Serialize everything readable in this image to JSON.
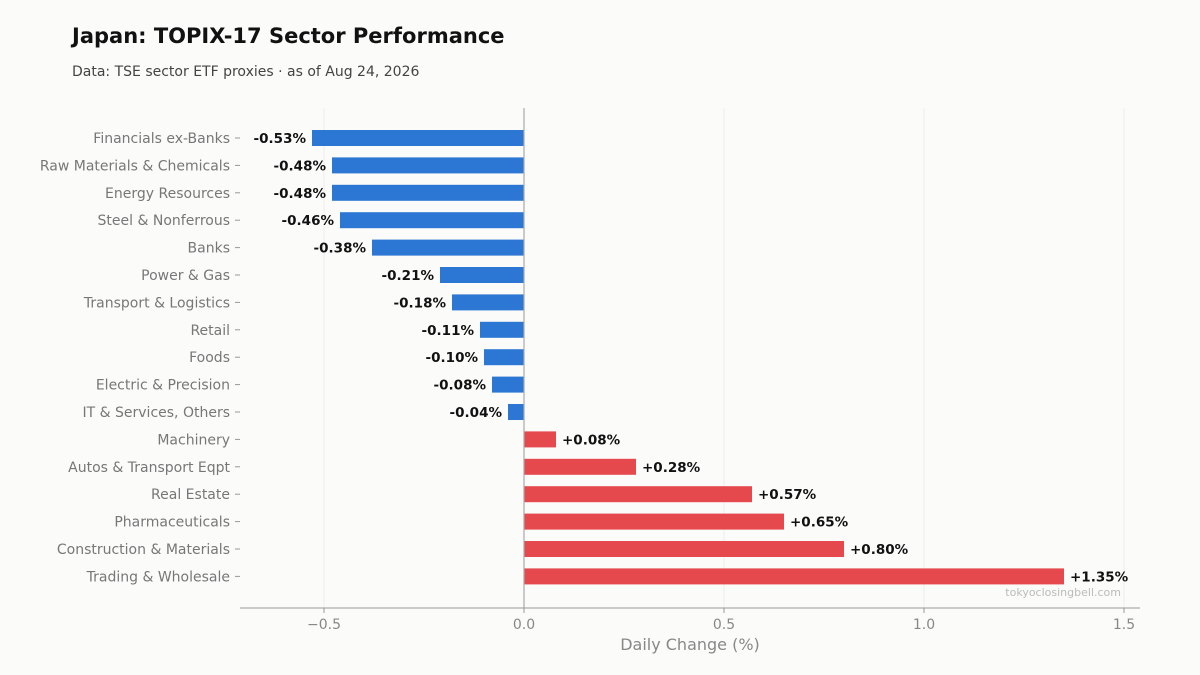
{
  "header": {
    "title": "Japan: TOPIX-17 Sector Performance",
    "subtitle": "Data: TSE sector ETF proxies · as of Aug 24, 2026"
  },
  "watermark": "tokyoclosingbell.com",
  "colors": {
    "negative": "#2c77d3",
    "positive": "#e5484d",
    "axis": "#999999",
    "grid": "#eeeeee"
  },
  "chart_data": {
    "type": "bar",
    "orientation": "horizontal",
    "title": "Japan: TOPIX-17 Sector Performance",
    "subtitle": "Data: TSE sector ETF proxies · as of Aug 24, 2026",
    "xlabel": "Daily Change (%)",
    "ylabel": "",
    "xlim": [
      -0.71,
      1.54
    ],
    "xticks": [
      -0.5,
      0.0,
      0.5,
      1.0,
      1.5
    ],
    "xtick_labels": [
      "−0.5",
      "0.0",
      "0.5",
      "1.0",
      "1.5"
    ],
    "grid": "vertical",
    "categories": [
      "Financials ex-Banks",
      "Raw Materials & Chemicals",
      "Energy Resources",
      "Steel & Nonferrous",
      "Banks",
      "Power & Gas",
      "Transport & Logistics",
      "Retail",
      "Foods",
      "Electric & Precision",
      "IT & Services, Others",
      "Machinery",
      "Autos & Transport Eqpt",
      "Real Estate",
      "Pharmaceuticals",
      "Construction & Materials",
      "Trading & Wholesale"
    ],
    "values": [
      -0.53,
      -0.48,
      -0.48,
      -0.46,
      -0.38,
      -0.21,
      -0.18,
      -0.11,
      -0.1,
      -0.08,
      -0.04,
      0.08,
      0.28,
      0.57,
      0.65,
      0.8,
      1.35
    ],
    "value_labels": [
      "-0.53%",
      "-0.48%",
      "-0.48%",
      "-0.46%",
      "-0.38%",
      "-0.21%",
      "-0.18%",
      "-0.11%",
      "-0.10%",
      "-0.08%",
      "-0.04%",
      "+0.08%",
      "+0.28%",
      "+0.57%",
      "+0.65%",
      "+0.80%",
      "+1.35%"
    ]
  }
}
